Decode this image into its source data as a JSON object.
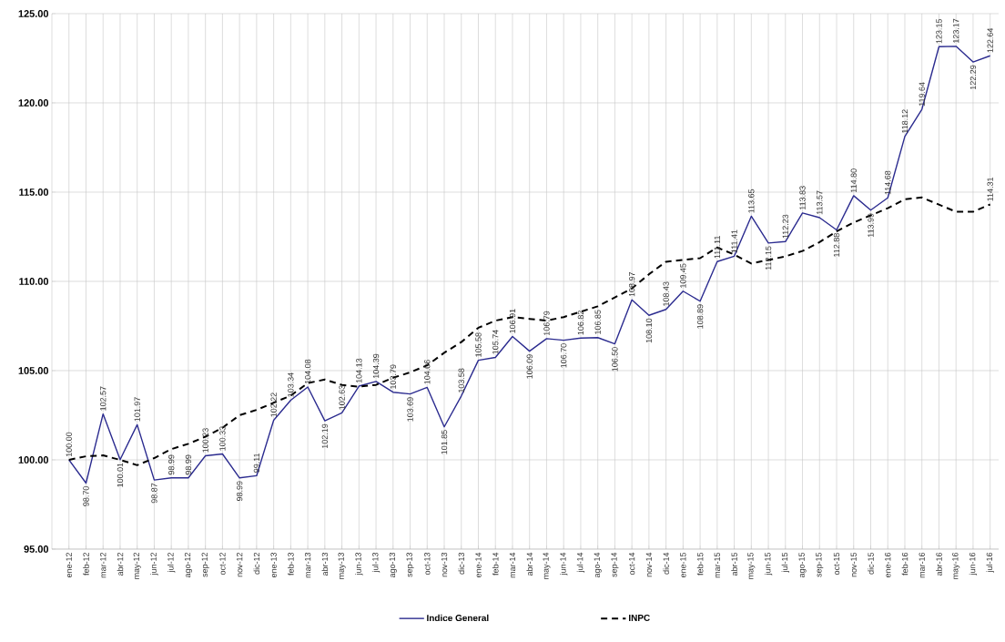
{
  "chart_data": {
    "type": "line",
    "categories": [
      "ene-12",
      "feb-12",
      "mar-12",
      "abr-12",
      "may-12",
      "jun-12",
      "jul-12",
      "ago-12",
      "sep-12",
      "oct-12",
      "nov-12",
      "dic-12",
      "ene-13",
      "feb-13",
      "mar-13",
      "abr-13",
      "may-13",
      "jun-13",
      "jul-13",
      "ago-13",
      "sep-13",
      "oct-13",
      "nov-13",
      "dic-13",
      "ene-14",
      "feb-14",
      "mar-14",
      "abr-14",
      "may-14",
      "jun-14",
      "jul-14",
      "ago-14",
      "sep-14",
      "oct-14",
      "nov-14",
      "dic-14",
      "ene-15",
      "feb-15",
      "mar-15",
      "abr-15",
      "may-15",
      "jun-15",
      "jul-15",
      "ago-15",
      "sep-15",
      "oct-15",
      "nov-15",
      "dic-15",
      "ene-16",
      "feb-16",
      "mar-16",
      "abr-16",
      "may-16",
      "jun-16",
      "jul-16"
    ],
    "series": [
      {
        "name": "Indice General",
        "color": "#2b2b8f",
        "line_style": "solid",
        "values": [
          100.0,
          98.7,
          102.57,
          100.01,
          101.97,
          98.87,
          98.99,
          98.99,
          100.23,
          100.33,
          98.99,
          99.11,
          102.22,
          103.34,
          104.08,
          102.19,
          102.63,
          104.13,
          104.39,
          103.79,
          103.69,
          104.06,
          101.85,
          103.58,
          105.58,
          105.74,
          106.91,
          106.09,
          106.79,
          106.7,
          106.82,
          106.85,
          106.5,
          108.97,
          108.1,
          108.43,
          109.45,
          108.89,
          111.11,
          111.41,
          113.65,
          112.15,
          112.23,
          113.83,
          113.57,
          112.88,
          114.8,
          113.99,
          114.68,
          118.12,
          119.64,
          123.15,
          123.17,
          122.29,
          122.64
        ],
        "value_labels": [
          "100.00",
          "98.70",
          "102.57",
          "100.01",
          "101.97",
          "98.87",
          "98.99",
          "98.99",
          "100.23",
          "100.33",
          "98.99",
          "99.11",
          "102.22",
          "103.34",
          "104.08",
          "102.19",
          "102.63",
          "104.13",
          "104.39",
          "103.79",
          "103.69",
          "104.06",
          "101.85",
          "103.58",
          "105.58",
          "105.74",
          "106.91",
          "106.09",
          "106.79",
          "106.70",
          "106.82",
          "106.85",
          "106.50",
          "108.97",
          "108.10",
          "108.43",
          "109.45",
          "108.89",
          "111.11",
          "111.41",
          "113.65",
          "112.15",
          "112.23",
          "113.83",
          "113.57",
          "112.88",
          "114.80",
          "113.99",
          "114.68",
          "118.12",
          "119.64",
          "123.15",
          "123.17",
          "122.29",
          "122.64"
        ]
      },
      {
        "name": "INPC",
        "color": "#000000",
        "line_style": "dashed",
        "values": [
          100.0,
          100.2,
          100.25,
          100.0,
          99.7,
          100.1,
          100.6,
          100.9,
          101.3,
          101.8,
          102.5,
          102.8,
          103.2,
          103.6,
          104.3,
          104.5,
          104.2,
          104.1,
          104.2,
          104.6,
          104.9,
          105.3,
          106.0,
          106.6,
          107.4,
          107.8,
          108.0,
          107.9,
          107.8,
          108.0,
          108.3,
          108.6,
          109.1,
          109.6,
          110.4,
          111.1,
          111.2,
          111.3,
          111.9,
          111.5,
          111.0,
          111.2,
          111.4,
          111.7,
          112.2,
          112.8,
          113.3,
          113.7,
          114.1,
          114.6,
          114.7,
          114.3,
          113.9,
          113.9,
          114.31
        ],
        "value_labels": [
          null,
          null,
          null,
          null,
          null,
          null,
          null,
          null,
          null,
          null,
          null,
          null,
          null,
          null,
          null,
          null,
          null,
          null,
          null,
          null,
          null,
          null,
          null,
          null,
          null,
          null,
          null,
          null,
          null,
          null,
          null,
          null,
          null,
          null,
          null,
          null,
          null,
          null,
          null,
          null,
          null,
          null,
          null,
          null,
          null,
          null,
          null,
          null,
          null,
          null,
          null,
          null,
          null,
          null,
          "114.31"
        ]
      }
    ],
    "ylim": [
      95,
      125
    ],
    "yticks": [
      {
        "value": 95,
        "label": "95.00"
      },
      {
        "value": 100,
        "label": "100.00"
      },
      {
        "value": 105,
        "label": "105.00"
      },
      {
        "value": 110,
        "label": "110.00"
      },
      {
        "value": 115,
        "label": "115.00"
      },
      {
        "value": 120,
        "label": "120.00"
      },
      {
        "value": 125,
        "label": "125.00"
      }
    ],
    "grid": true,
    "legend": "bottom",
    "marker": "none"
  }
}
